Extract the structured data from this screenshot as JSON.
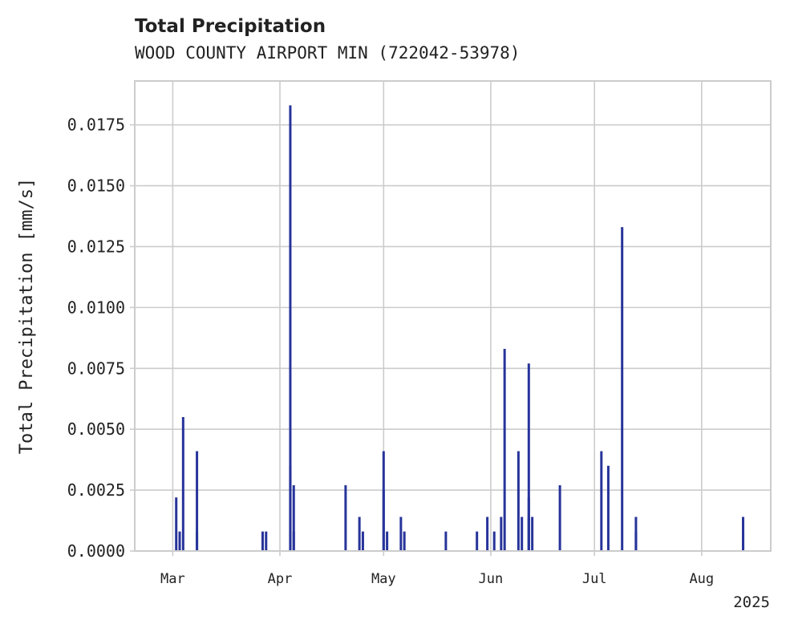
{
  "chart_data": {
    "type": "bar",
    "title": "Total Precipitation",
    "subtitle": "WOOD COUNTY AIRPORT MIN (722042-53978)",
    "ylabel": "Total Precipitation [mm/s]",
    "xlabel": "",
    "year_label": "2025",
    "ylim": [
      0,
      0.0193
    ],
    "xlim": [
      "2025-02-18",
      "2025-08-21"
    ],
    "yticks": [
      0,
      0.0025,
      0.005,
      0.0075,
      0.01,
      0.0125,
      0.015,
      0.0175
    ],
    "ytick_labels": [
      "0.0000",
      "0.0025",
      "0.0050",
      "0.0075",
      "0.0100",
      "0.0125",
      "0.0150",
      "0.0175"
    ],
    "xticks": [
      "2025-03-01",
      "2025-04-01",
      "2025-05-01",
      "2025-06-01",
      "2025-07-01",
      "2025-08-01"
    ],
    "xtick_labels": [
      "Mar",
      "Apr",
      "May",
      "Jun",
      "Jul",
      "Aug"
    ],
    "grid": true,
    "color": "#27349a",
    "points": [
      {
        "x": "2025-03-02",
        "y": 0.0022
      },
      {
        "x": "2025-03-03",
        "y": 0.0008
      },
      {
        "x": "2025-03-04",
        "y": 0.0055
      },
      {
        "x": "2025-03-08",
        "y": 0.0041
      },
      {
        "x": "2025-03-08",
        "y": 0.0008
      },
      {
        "x": "2025-03-27",
        "y": 0.0008
      },
      {
        "x": "2025-03-28",
        "y": 0.0008
      },
      {
        "x": "2025-04-04",
        "y": 0.0183
      },
      {
        "x": "2025-04-04",
        "y": 0.0035
      },
      {
        "x": "2025-04-05",
        "y": 0.0027
      },
      {
        "x": "2025-04-05",
        "y": 0.0008
      },
      {
        "x": "2025-04-20",
        "y": 0.0027
      },
      {
        "x": "2025-04-24",
        "y": 0.0014
      },
      {
        "x": "2025-04-25",
        "y": 0.0008
      },
      {
        "x": "2025-05-01",
        "y": 0.0041
      },
      {
        "x": "2025-05-01",
        "y": 0.0025
      },
      {
        "x": "2025-05-02",
        "y": 0.0008
      },
      {
        "x": "2025-05-06",
        "y": 0.0014
      },
      {
        "x": "2025-05-07",
        "y": 0.0008
      },
      {
        "x": "2025-05-19",
        "y": 0.0008
      },
      {
        "x": "2025-05-28",
        "y": 0.0008
      },
      {
        "x": "2025-05-31",
        "y": 0.0014
      },
      {
        "x": "2025-06-02",
        "y": 0.0008
      },
      {
        "x": "2025-06-04",
        "y": 0.0014
      },
      {
        "x": "2025-06-05",
        "y": 0.0083
      },
      {
        "x": "2025-06-09",
        "y": 0.0041
      },
      {
        "x": "2025-06-10",
        "y": 0.0014
      },
      {
        "x": "2025-06-12",
        "y": 0.0077
      },
      {
        "x": "2025-06-12",
        "y": 0.0022
      },
      {
        "x": "2025-06-12",
        "y": 0.0014
      },
      {
        "x": "2025-06-13",
        "y": 0.0014
      },
      {
        "x": "2025-06-21",
        "y": 0.0027
      },
      {
        "x": "2025-07-03",
        "y": 0.0041
      },
      {
        "x": "2025-07-05",
        "y": 0.0035
      },
      {
        "x": "2025-07-09",
        "y": 0.0133
      },
      {
        "x": "2025-07-13",
        "y": 0.0014
      },
      {
        "x": "2025-07-13",
        "y": 0.0008
      },
      {
        "x": "2025-08-13",
        "y": 0.0014
      },
      {
        "x": "2025-08-13",
        "y": 0.0008
      }
    ]
  }
}
